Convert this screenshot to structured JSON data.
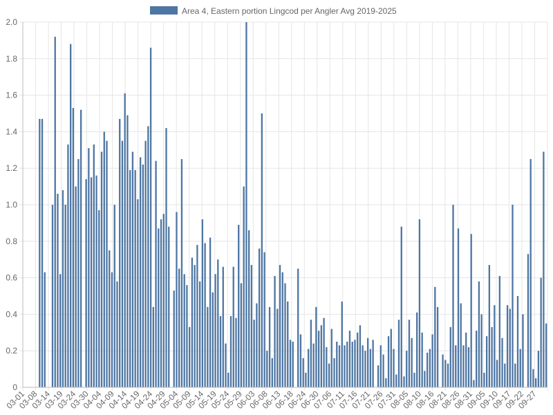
{
  "chart_data": {
    "type": "bar",
    "ylim": [
      0,
      2.0
    ],
    "y_ticks": [
      "0",
      "0.2",
      "0.4",
      "0.6",
      "0.8",
      "1.0",
      "1.2",
      "1.4",
      "1.6",
      "1.8",
      "2.0"
    ],
    "grid": true,
    "legend_position": "top",
    "colors": {
      "bar": "#4e76a3",
      "grid": "#e5e5e5",
      "axis": "#bbbbbb",
      "text": "#666666"
    },
    "series": [
      {
        "name": "Area 4, Eastern portion Lingcod per Angler Avg 2019-2025"
      }
    ],
    "x_labels": [
      "03-01",
      "03-08",
      "03-14",
      "03-19",
      "03-24",
      "03-30",
      "04-04",
      "04-09",
      "04-14",
      "04-19",
      "04-24",
      "04-29",
      "05-04",
      "05-09",
      "05-14",
      "05-19",
      "05-24",
      "05-29",
      "06-03",
      "06-08",
      "06-13",
      "06-18",
      "06-24",
      "06-30",
      "07-06",
      "07-11",
      "07-16",
      "07-21",
      "07-26",
      "07-31",
      "08-05",
      "08-10",
      "08-16",
      "08-21",
      "08-26",
      "08-31",
      "09-05",
      "09-10",
      "09-17",
      "09-22",
      "09-27"
    ],
    "values": [
      0,
      0,
      0,
      0,
      0,
      0,
      1.47,
      1.47,
      0.63,
      0,
      0,
      1.0,
      1.92,
      1.06,
      0.62,
      1.08,
      1.0,
      1.33,
      1.88,
      1.53,
      1.1,
      1.25,
      1.52,
      0,
      1.14,
      1.31,
      1.15,
      1.33,
      1.16,
      0.97,
      1.29,
      1.4,
      1.35,
      0.75,
      0.63,
      1.0,
      0.58,
      1.47,
      1.35,
      1.61,
      1.49,
      1.19,
      1.29,
      1.19,
      1.03,
      1.26,
      1.22,
      1.35,
      1.43,
      1.86,
      0.44,
      1.24,
      0.87,
      0.92,
      0.95,
      1.42,
      0.88,
      0,
      0.53,
      0.96,
      0.65,
      1.25,
      0.62,
      0.56,
      0.33,
      0.71,
      0.67,
      0.78,
      0.58,
      0.92,
      0.79,
      0.44,
      0.82,
      0.52,
      0.62,
      0.7,
      0.39,
      0.66,
      0.24,
      0.08,
      0.39,
      0.66,
      0.38,
      0.89,
      0.57,
      1.1,
      2.0,
      0.86,
      0.67,
      0.37,
      0.46,
      0.76,
      1.5,
      0.74,
      0.2,
      0.44,
      0.16,
      0.61,
      0.43,
      0.67,
      0.63,
      0.57,
      0.47,
      0.26,
      0.25,
      0,
      0.65,
      0.29,
      0.16,
      0.08,
      0.21,
      0.37,
      0.24,
      0.44,
      0.31,
      0.34,
      0.38,
      0.22,
      0.13,
      0.32,
      0.16,
      0.25,
      0.23,
      0.47,
      0.23,
      0.25,
      0.31,
      0.25,
      0.26,
      0.3,
      0.34,
      0.23,
      0.2,
      0.27,
      0.21,
      0.26,
      0,
      0.12,
      0.23,
      0.18,
      0.05,
      0.28,
      0.32,
      0.21,
      0.07,
      0.37,
      0.88,
      0.06,
      0.2,
      0.37,
      0.27,
      0.08,
      0.41,
      0.92,
      0.3,
      0.09,
      0.19,
      0.21,
      0.29,
      0.55,
      0.44,
      0,
      0.18,
      0.15,
      0.13,
      0.33,
      1.0,
      0.23,
      0.87,
      0.46,
      0.23,
      0.3,
      0.22,
      0.84,
      0.04,
      0.31,
      0.58,
      0.4,
      0.08,
      0.28,
      0.67,
      0.33,
      0.45,
      0.15,
      0.61,
      0.27,
      0.13,
      0.45,
      0.43,
      1.0,
      0.13,
      0.5,
      0.21,
      0.4,
      0,
      0.73,
      1.25,
      0.1,
      0.05,
      0.2,
      0.6,
      1.29,
      0.35
    ]
  }
}
